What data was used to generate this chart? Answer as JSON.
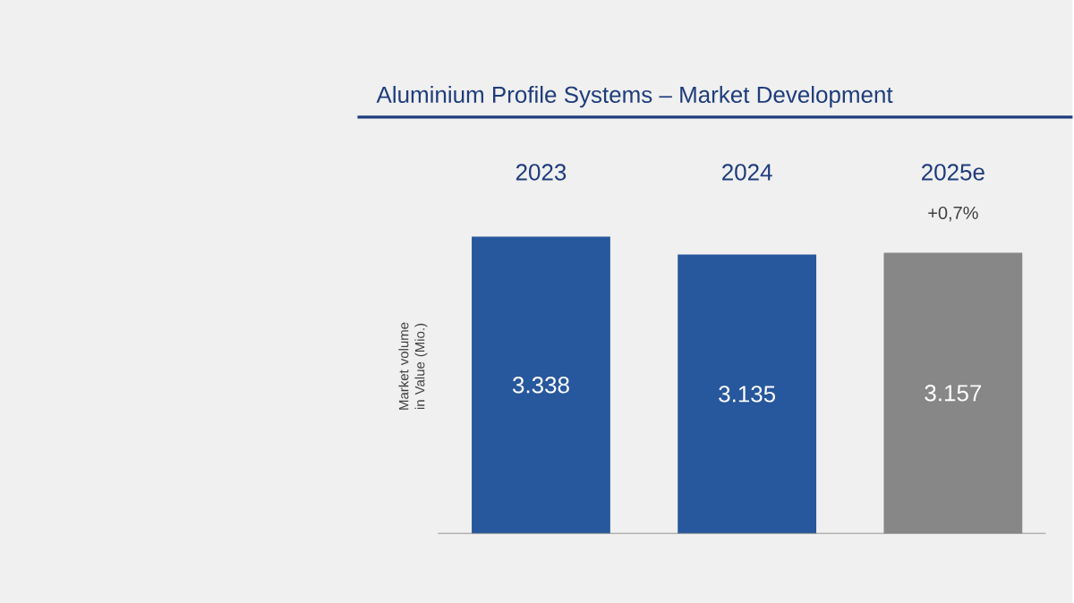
{
  "chart_data": {
    "type": "bar",
    "title": "Aluminium Profile Systems – Market Development",
    "ylabel": "Market volume in Value (Mio.)",
    "categories": [
      "2023",
      "2024",
      "2025e"
    ],
    "values": [
      3338,
      3135,
      3157
    ],
    "value_labels": [
      "3.338",
      "3.135",
      "3.157"
    ],
    "colors": [
      "#27579c",
      "#27579c",
      "#878787"
    ],
    "annotations": [
      "+0,7%"
    ]
  }
}
